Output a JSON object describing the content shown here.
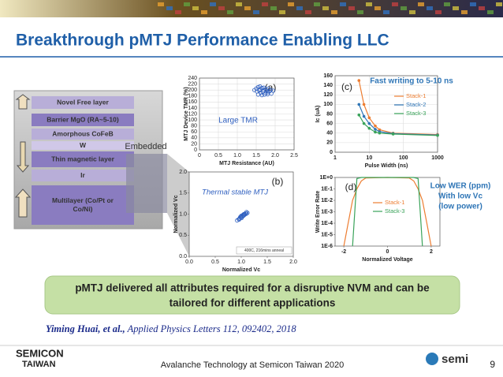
{
  "title": "Breakthrough pMTJ Performance Enabling LLC",
  "stack": [
    "Novel Free layer",
    "Barrier MgO (RA~5-10)",
    "Amorphous CoFeB",
    "W",
    "Thin magnetic layer",
    "Ir",
    "Multilayer (Co/Pt or Co/Ni)"
  ],
  "embedded_label": "Embedded",
  "chart_data": [
    {
      "type": "scatter",
      "label": "(a)",
      "annotation": "Large TMR",
      "xlabel": "MTJ Resistance (AU)",
      "ylabel": "MTJ Device TMR (%)",
      "color": "#3060c0",
      "x": [
        1.45,
        1.5,
        1.52,
        1.55,
        1.58,
        1.6,
        1.62,
        1.65,
        1.68,
        1.7,
        1.72,
        1.75,
        1.78,
        1.8,
        1.82,
        1.85,
        1.88,
        1.9,
        1.6,
        1.7,
        1.75,
        1.55,
        1.65,
        1.8,
        1.95
      ],
      "values": [
        200,
        205,
        195,
        210,
        198,
        202,
        190,
        207,
        195,
        200,
        185,
        203,
        198,
        192,
        205,
        196,
        200,
        188,
        212,
        208,
        190,
        185,
        183,
        186,
        198
      ],
      "xlim": [
        0,
        2.5
      ],
      "xticks": [
        {
          "value": 0,
          "label": "0"
        },
        0.5,
        {
          "value": 1,
          "label": "1.0"
        },
        1.5,
        {
          "value": 2,
          "label": "2.0"
        },
        2.5
      ],
      "ylim": [
        0,
        240
      ],
      "yticks": [
        0,
        20,
        40,
        60,
        80,
        100,
        120,
        140,
        160,
        180,
        200,
        220,
        240
      ],
      "grid": true
    },
    {
      "type": "scatter",
      "label": "(b)",
      "annotation": "Thermal stable MTJ",
      "xlabel": "Normalized Vc",
      "ylabel": "Normalized Vc",
      "legend": "400C, 216mins anneal",
      "color": "#3060c0",
      "x": [
        0.92,
        0.95,
        0.97,
        0.98,
        1.0,
        1.0,
        1.02,
        1.03,
        1.05,
        1.05,
        1.07,
        1.08,
        1.1,
        1.1,
        1.12,
        0.99,
        1.01,
        1.04,
        1.06,
        0.96
      ],
      "values": [
        0.85,
        0.88,
        0.9,
        0.93,
        0.92,
        0.96,
        0.95,
        0.98,
        0.97,
        1.0,
        0.99,
        1.02,
        1.01,
        1.05,
        1.03,
        0.94,
        0.91,
        0.96,
        1.0,
        0.87
      ],
      "xlim": [
        0,
        2
      ],
      "xticks": [
        {
          "value": 0,
          "label": "0.0"
        },
        0.5,
        {
          "value": 1,
          "label": "1.0"
        },
        1.5,
        {
          "value": 2,
          "label": "2.0"
        }
      ],
      "ylim": [
        0,
        2
      ],
      "yticks": [
        {
          "value": 0,
          "label": "0.0"
        },
        0.5,
        {
          "value": 1,
          "label": "1.0"
        },
        1.5,
        {
          "value": 2,
          "label": "2.0"
        }
      ],
      "grid": false
    },
    {
      "type": "line",
      "label": "(c)",
      "annotation": [
        "Fast writing to 5-10 ns"
      ],
      "xlabel": "Pulse Width (ns)",
      "ylabel": "Ic (uA)",
      "xlog": true,
      "markers": true,
      "x": [
        5,
        7,
        10,
        15,
        20,
        50,
        1000
      ],
      "series": [
        {
          "name": "Stack-1",
          "color": "#ed7d31",
          "values": [
            150,
            100,
            72,
            55,
            47,
            40,
            37
          ]
        },
        {
          "name": "Stack-2",
          "color": "#2e75b6",
          "values": [
            100,
            75,
            60,
            48,
            43,
            39,
            36
          ]
        },
        {
          "name": "Stack-3",
          "color": "#3aa35a",
          "values": [
            78,
            60,
            50,
            42,
            40,
            38,
            35
          ]
        }
      ],
      "xlim": [
        1,
        1000
      ],
      "xticks": [
        1,
        10,
        100,
        1000
      ],
      "ylim": [
        0,
        160
      ],
      "yticks": [
        0,
        20,
        40,
        60,
        80,
        100,
        120,
        140,
        160
      ],
      "grid": true
    },
    {
      "type": "line",
      "label": "(d)",
      "annotation": [
        "Low WER (ppm)",
        "With low Vc",
        "(low power)"
      ],
      "xlabel": "Normalized Voltage",
      "ylabel": "Write Error Rate",
      "ylog": true,
      "markers": false,
      "x": [
        -2,
        -1.8,
        -1.6,
        -1.4,
        -1.2,
        -1,
        0,
        1,
        1.2,
        1.4,
        1.6,
        1.8,
        2
      ],
      "series": [
        {
          "name": "Stack-1",
          "color": "#ed7d31",
          "values": [
            1e-06,
            0.0001,
            0.01,
            0.1,
            0.5,
            0.9,
            1,
            0.9,
            0.5,
            0.1,
            0.01,
            0.0001,
            1e-06
          ]
        },
        {
          "name": "Stack-3",
          "color": "#3aa35a",
          "values": [
            null,
            null,
            1e-06,
            0.8,
            1,
            1,
            1,
            1,
            1,
            0.8,
            1e-06,
            null,
            null
          ]
        }
      ],
      "xlim": [
        -2.4,
        2.4
      ],
      "xticks": [
        -2,
        0,
        2
      ],
      "ylim": [
        1e-06,
        1
      ],
      "yticks": [
        {
          "value": 1,
          "label": "1E+0"
        },
        {
          "value": 0.1,
          "label": "1E-1"
        },
        {
          "value": 0.01,
          "label": "1E-2"
        },
        {
          "value": 0.001,
          "label": "1E-3"
        },
        {
          "value": 0.0001,
          "label": "1E-4"
        },
        {
          "value": 1e-05,
          "label": "1E-5"
        },
        {
          "value": 1e-06,
          "label": "1E-6"
        }
      ],
      "grid": false
    }
  ],
  "callout": [
    "pMTJ  delivered all attributes required for a disruptive NVM and can be",
    "tailored for different applications"
  ],
  "citation": {
    "authors": "Yiming Huai, et al.,",
    "source": "Applied Physics Letters 112, 092402, 2018"
  },
  "footer": {
    "logo_top": "SEMICON",
    "logo_bottom": "TAIWAN",
    "text": "Avalanche Technology at Semicon Taiwan 2020",
    "logo_right": "semi",
    "page": "9"
  }
}
